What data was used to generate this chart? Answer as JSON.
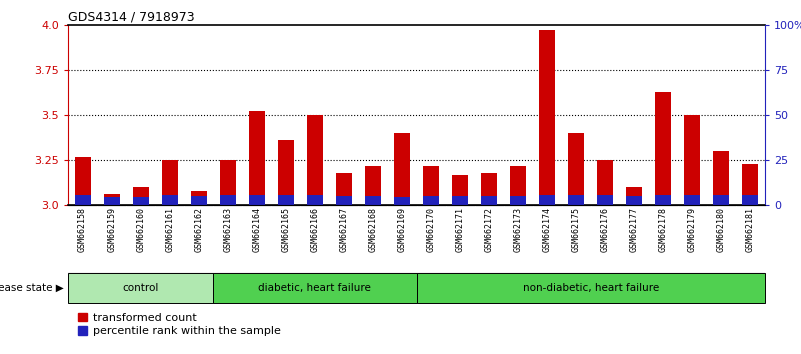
{
  "title": "GDS4314 / 7918973",
  "samples": [
    "GSM662158",
    "GSM662159",
    "GSM662160",
    "GSM662161",
    "GSM662162",
    "GSM662163",
    "GSM662164",
    "GSM662165",
    "GSM662166",
    "GSM662167",
    "GSM662168",
    "GSM662169",
    "GSM662170",
    "GSM662171",
    "GSM662172",
    "GSM662173",
    "GSM662174",
    "GSM662175",
    "GSM662176",
    "GSM662177",
    "GSM662178",
    "GSM662179",
    "GSM662180",
    "GSM662181"
  ],
  "red_values": [
    3.27,
    3.06,
    3.1,
    3.25,
    3.08,
    3.25,
    3.52,
    3.36,
    3.5,
    3.18,
    3.22,
    3.4,
    3.22,
    3.17,
    3.18,
    3.22,
    3.97,
    3.4,
    3.25,
    3.1,
    3.63,
    3.5,
    3.3,
    3.23
  ],
  "blue_heights": [
    0.055,
    0.048,
    0.048,
    0.055,
    0.05,
    0.055,
    0.055,
    0.055,
    0.055,
    0.05,
    0.05,
    0.048,
    0.05,
    0.05,
    0.05,
    0.05,
    0.055,
    0.055,
    0.055,
    0.05,
    0.055,
    0.055,
    0.055,
    0.055
  ],
  "bar_base": 3.0,
  "y_min": 3.0,
  "y_max": 4.0,
  "y_ticks_left": [
    3.0,
    3.25,
    3.5,
    3.75,
    4.0
  ],
  "y_ticks_right_vals": [
    0,
    25,
    50,
    75,
    100
  ],
  "y_ticks_right_labels": [
    "0",
    "25",
    "50",
    "75",
    "100%"
  ],
  "groups": [
    {
      "label": "control",
      "start": 0,
      "end": 5
    },
    {
      "label": "diabetic, heart failure",
      "start": 5,
      "end": 12
    },
    {
      "label": "non-diabetic, heart failure",
      "start": 12,
      "end": 24
    }
  ],
  "group_colors": [
    "#b0e8b0",
    "#50d050",
    "#50d050"
  ],
  "disease_state_label": "disease state",
  "red_color": "#CC0000",
  "blue_color": "#2222BB",
  "bar_width": 0.55,
  "xticklabel_bg": "#d0d0d0",
  "legend_red_label": "transformed count",
  "legend_blue_label": "percentile rank within the sample"
}
